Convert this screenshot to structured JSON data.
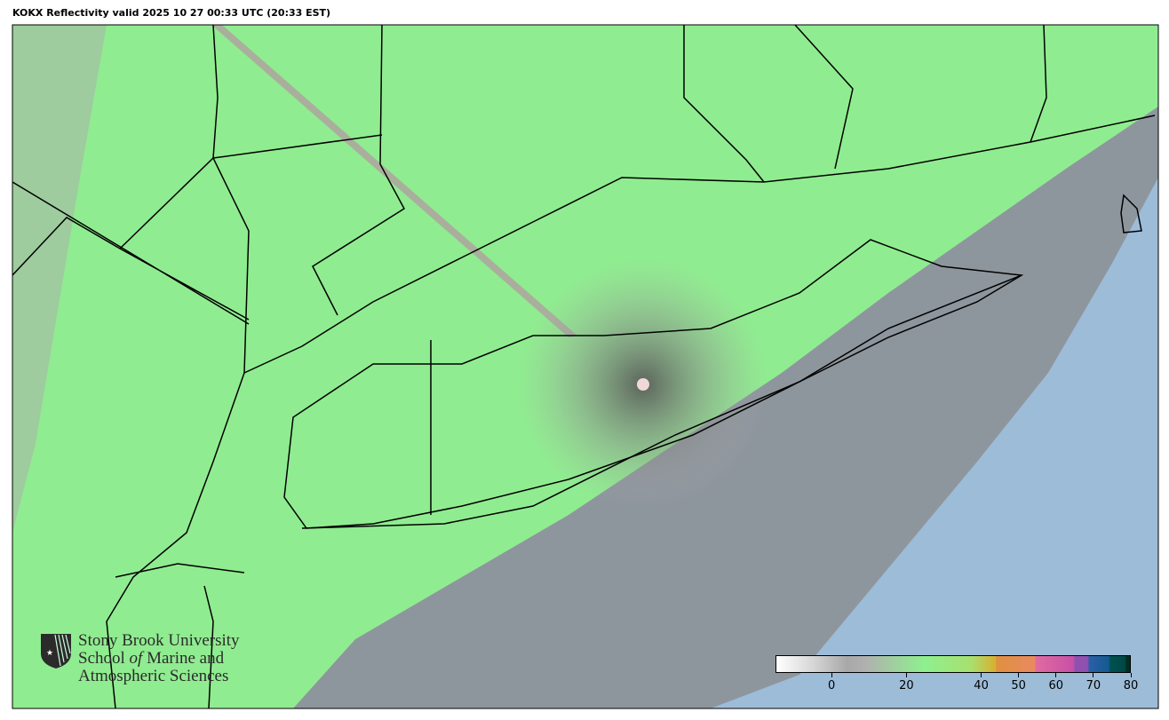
{
  "title": "KOKX Reflectivity valid 2025 10 27 00:33 UTC (20:33 EST)",
  "logo": {
    "line1": "Stony Brook University",
    "line2_a": "School ",
    "line2_b": "of",
    "line2_c": " Marine and",
    "line3": "Atmospheric Sciences"
  },
  "colorbar": {
    "min": -15,
    "max": 80,
    "ticks": [
      "0",
      "20",
      "40",
      "50",
      "60",
      "70",
      "80"
    ],
    "tick_values": [
      0,
      20,
      40,
      50,
      60,
      70,
      80
    ]
  },
  "colors": {
    "ocean": "#9dbcd8",
    "land_echo": "#90ee90",
    "clutter": "#a0a0a0",
    "radar_site": "#f0d8d8"
  }
}
